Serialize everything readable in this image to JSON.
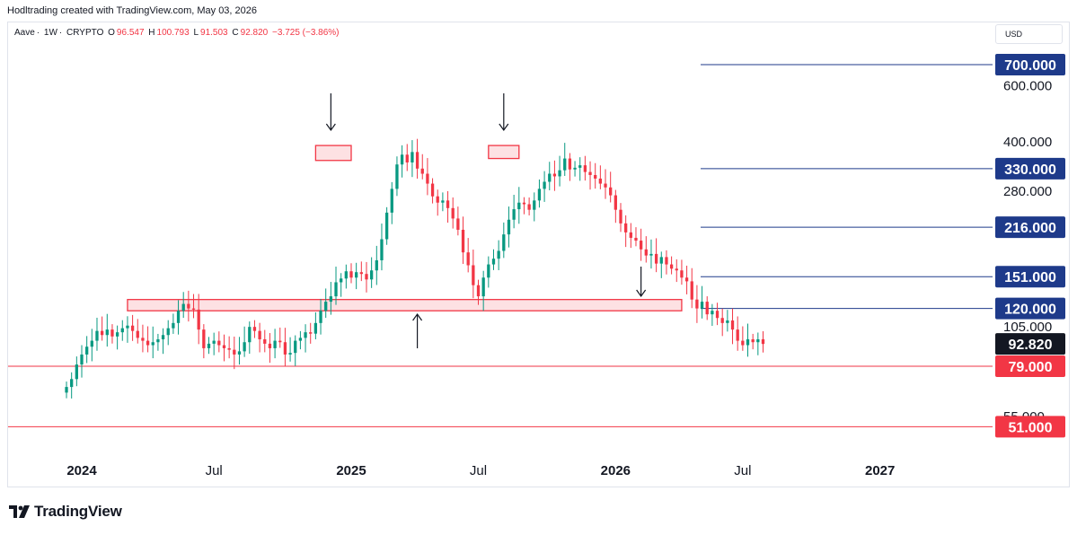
{
  "header": {
    "credit": "Hodltrading created with TradingView.com, May 03, 2026",
    "currency": "USD"
  },
  "legend": {
    "symbol": "Aave",
    "interval": "1W",
    "exchange": "CRYPTO",
    "open_label": "O",
    "open": "96.547",
    "high_label": "H",
    "high": "100.793",
    "low_label": "L",
    "low": "91.503",
    "close_label": "C",
    "close": "92.820",
    "change": "−3.725 (−3.86%)"
  },
  "footer": {
    "brand": "TradingView"
  },
  "chart_data": {
    "type": "candlestick",
    "x_ticks": [
      "2024",
      "Jul",
      "2025",
      "Jul",
      "2026",
      "Jul",
      "2027"
    ],
    "y_ticks": [
      "600.000",
      "400.000",
      "280.000",
      "105.000",
      "55.000"
    ],
    "y_scale": "log",
    "price_lines": [
      {
        "label": "700.000",
        "value": 700,
        "color": "#1e3a8a",
        "kind": "target"
      },
      {
        "label": "330.000",
        "value": 330,
        "color": "#1e3a8a",
        "kind": "target"
      },
      {
        "label": "216.000",
        "value": 216,
        "color": "#1e3a8a",
        "kind": "target"
      },
      {
        "label": "151.000",
        "value": 151,
        "color": "#1e3a8a",
        "kind": "target"
      },
      {
        "label": "120.000",
        "value": 120,
        "color": "#1e3a8a",
        "kind": "target"
      },
      {
        "label": "79.000",
        "value": 79,
        "color": "#f23645",
        "kind": "support"
      },
      {
        "label": "51.000",
        "value": 51,
        "color": "#f23645",
        "kind": "support"
      }
    ],
    "last_price": {
      "label": "92.820",
      "value": 92.82
    },
    "zones": [
      {
        "name": "top-1",
        "from": 350,
        "to": 390,
        "x_from": "2024-11-18",
        "x_to": "2025-01-06"
      },
      {
        "name": "top-2",
        "from": 355,
        "to": 390,
        "x_from": "2025-07-14",
        "x_to": "2025-08-25"
      },
      {
        "name": "neckline",
        "from": 118,
        "to": 128,
        "x_from": "2024-03-04",
        "x_to": "2026-04-06"
      }
    ],
    "arrows": [
      {
        "direction": "down",
        "x": "2024-12-09"
      },
      {
        "direction": "down",
        "x": "2025-08-04"
      },
      {
        "direction": "up",
        "x": "2025-04-07"
      },
      {
        "direction": "down",
        "x": "2026-02-09"
      }
    ],
    "candles_weekly_close": [
      68,
      72,
      80,
      86,
      91,
      95,
      102,
      99,
      103,
      98,
      101,
      104,
      106,
      102,
      97,
      95,
      92,
      94,
      96,
      99,
      104,
      108,
      118,
      124,
      120,
      119,
      103,
      90,
      93,
      95,
      92,
      90,
      89,
      86,
      88,
      94,
      105,
      102,
      96,
      93,
      90,
      95,
      94,
      86,
      87,
      95,
      97,
      101,
      100,
      108,
      118,
      126,
      131,
      145,
      149,
      157,
      150,
      156,
      154,
      148,
      158,
      170,
      198,
      240,
      285,
      340,
      365,
      345,
      372,
      330,
      318,
      296,
      270,
      258,
      262,
      248,
      230,
      212,
      180,
      164,
      142,
      131,
      150,
      165,
      172,
      182,
      205,
      228,
      246,
      258,
      255,
      245,
      262,
      285,
      300,
      318,
      312,
      326,
      355,
      328,
      332,
      338,
      322,
      315,
      307,
      296,
      288,
      272,
      245,
      222,
      208,
      200,
      196,
      184,
      176,
      178,
      166,
      174,
      165,
      160,
      158,
      150,
      146,
      128,
      120,
      126,
      115,
      118,
      112,
      108,
      110,
      103,
      95,
      92,
      96,
      94,
      96,
      92.82
    ]
  }
}
